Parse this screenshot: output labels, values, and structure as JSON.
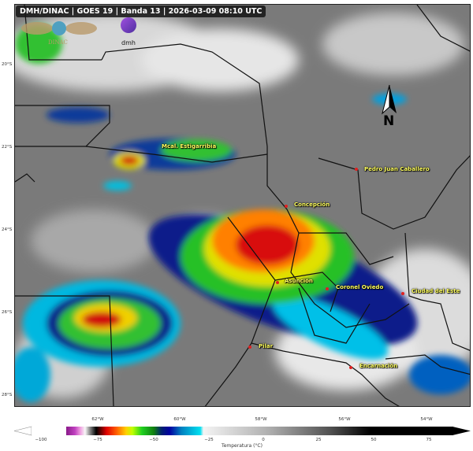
{
  "header": {
    "title": "DMH/DINAC | GOES 19 | Banda 13 | 2026-03-09 08:10 UTC"
  },
  "logos": {
    "dinac": "DINAC",
    "dmh": "dmh"
  },
  "north_arrow": {
    "label": "N",
    "icon": "north-arrow-icon"
  },
  "axes": {
    "lat_labels": [
      "20°S",
      "22°S",
      "24°S",
      "26°S",
      "28°S"
    ],
    "lon_labels": [
      "62°W",
      "60°W",
      "58°W",
      "56°W",
      "54°W"
    ]
  },
  "cities": [
    {
      "name": "Mcal. Estigarribia"
    },
    {
      "name": "Pedro Juan Caballero"
    },
    {
      "name": "Concepción"
    },
    {
      "name": "Asunción"
    },
    {
      "name": "Coronel Oviedo"
    },
    {
      "name": "Ciudad del Este"
    },
    {
      "name": "Pilar"
    },
    {
      "name": "Encarnación"
    }
  ],
  "colorbar": {
    "label": "Temperatura (°C)",
    "ticks": [
      "−100",
      "−75",
      "−50",
      "−25",
      "0",
      "25",
      "50",
      "75"
    ],
    "range": [
      -100,
      80
    ],
    "extend": "both"
  },
  "colors": {
    "city_marker": "#e02020",
    "city_label": "#ffff60"
  }
}
